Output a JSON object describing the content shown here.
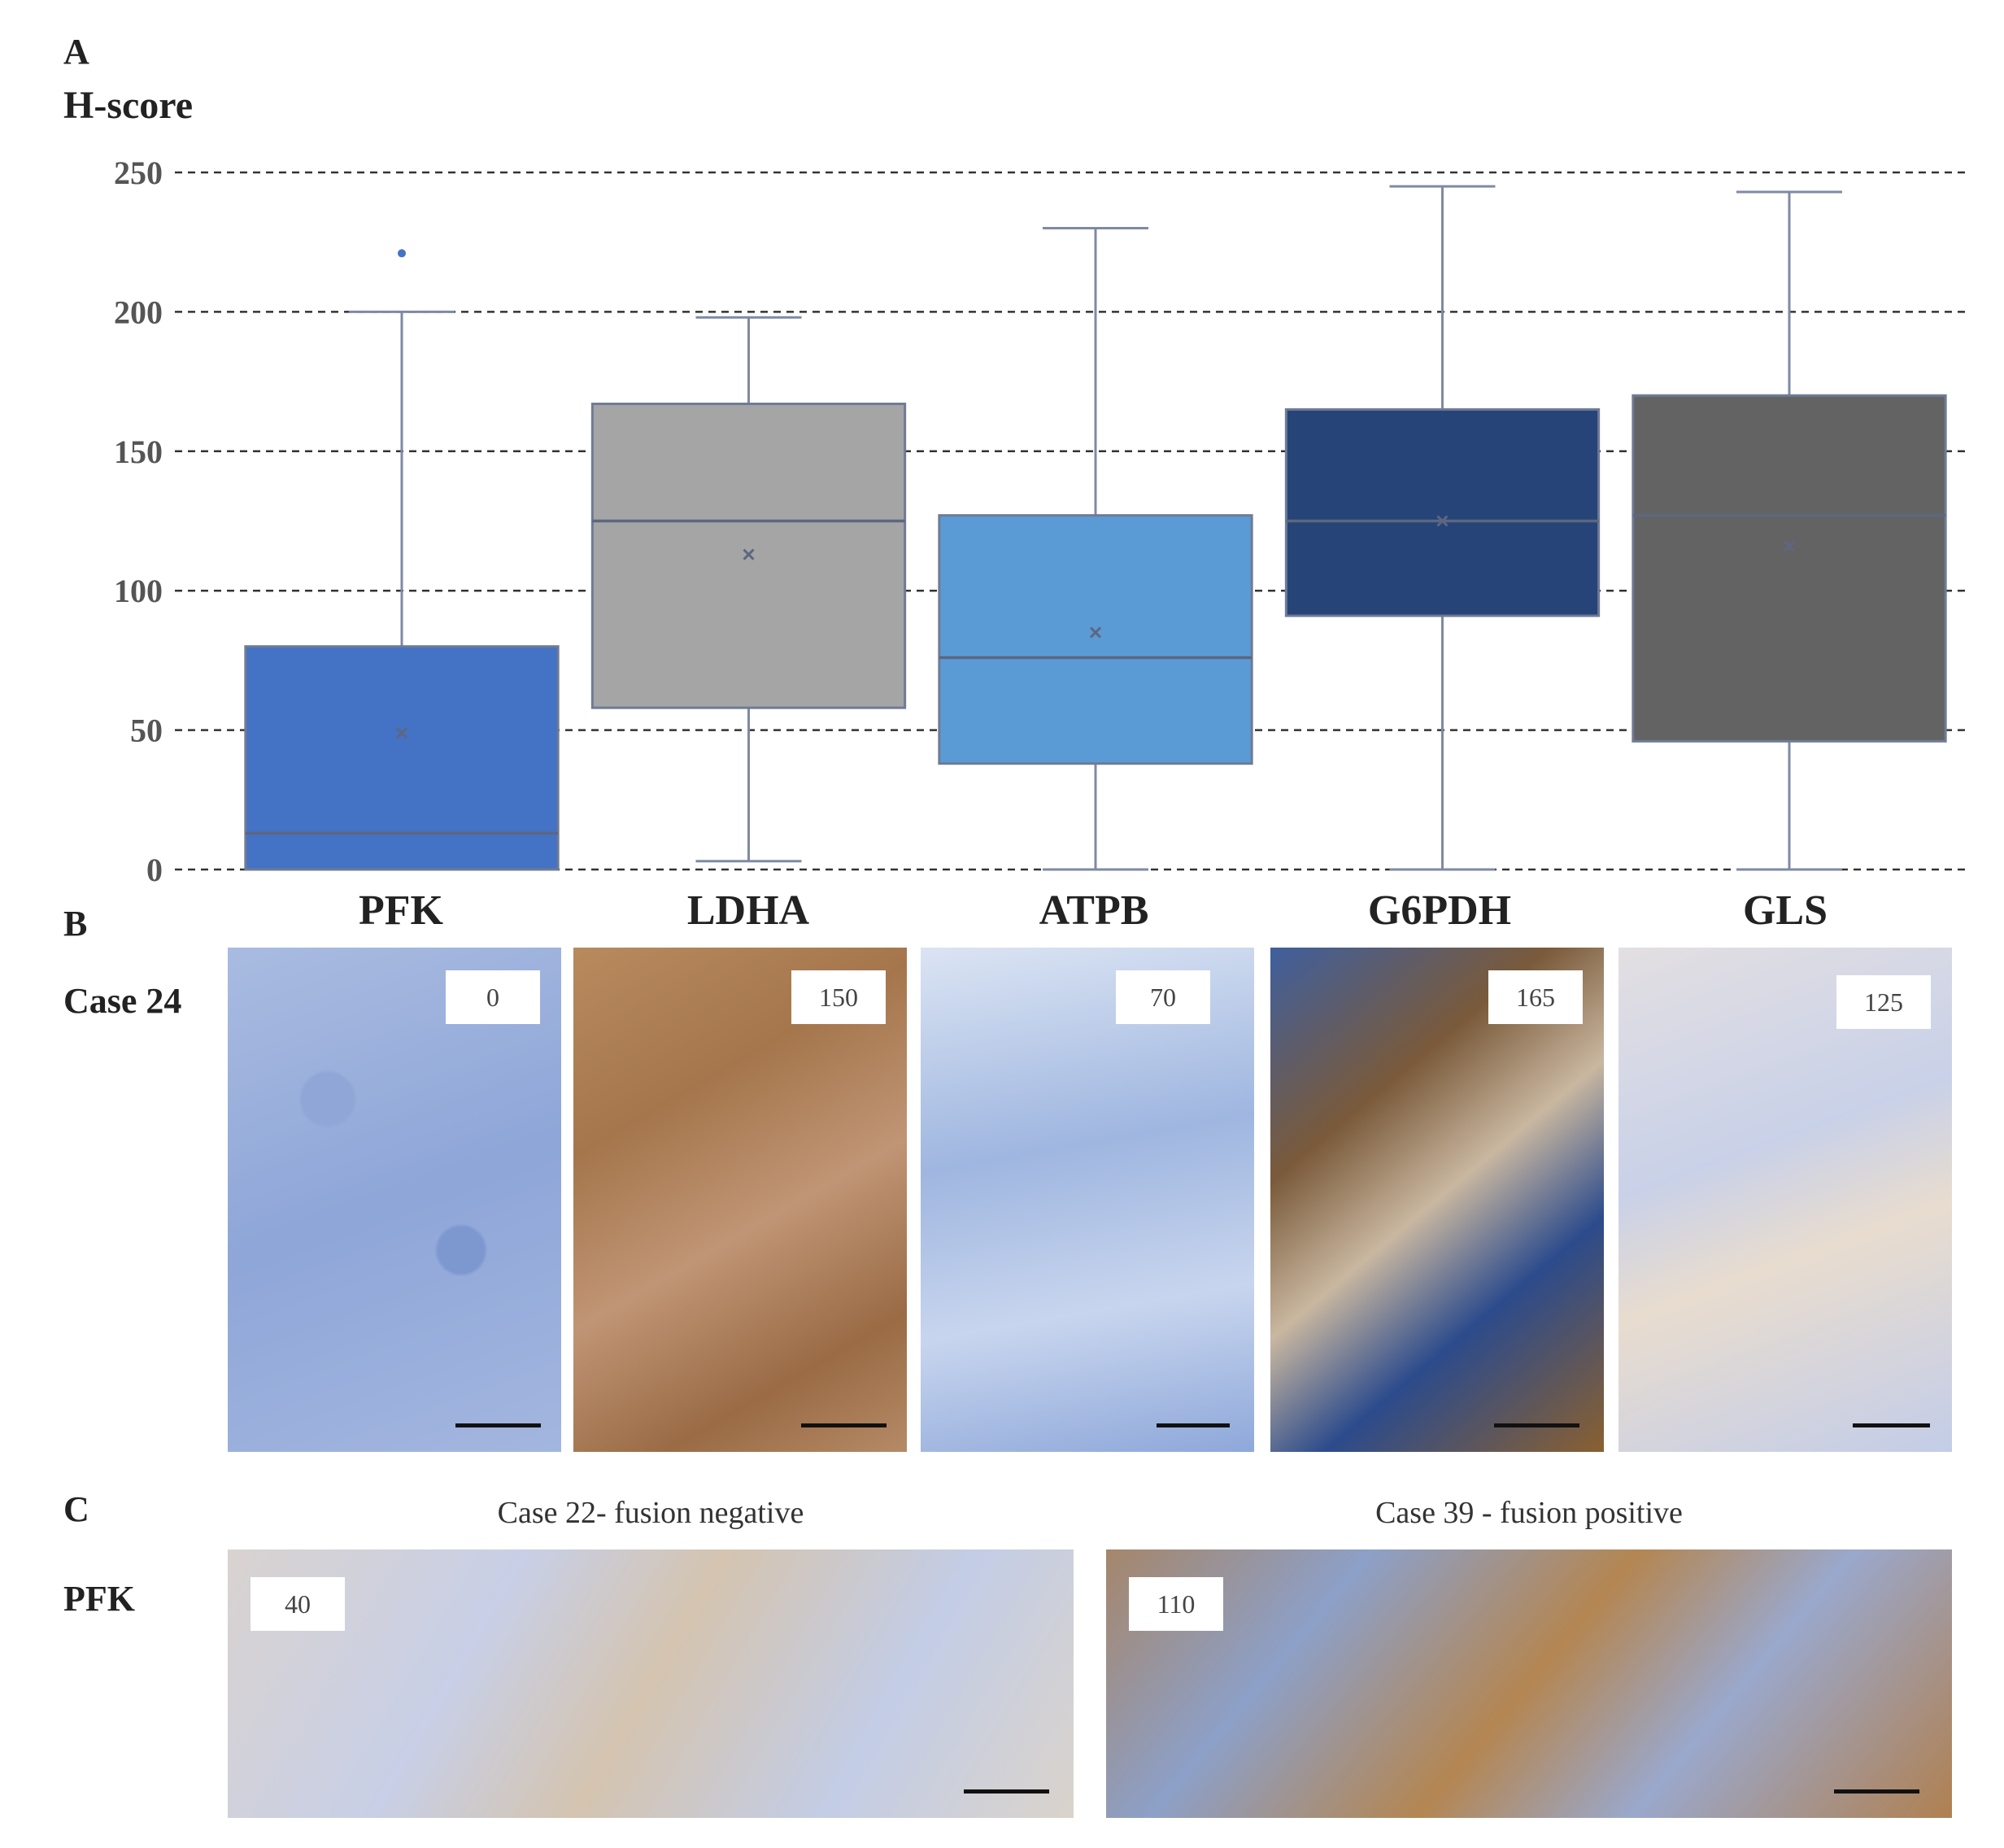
{
  "panels": {
    "a": "A",
    "b": "B",
    "c": "C"
  },
  "chart_data": {
    "type": "box",
    "ylabel": "H-score",
    "ylim": [
      0,
      250
    ],
    "yticks": [
      0,
      50,
      100,
      150,
      200,
      250
    ],
    "grid": true,
    "categories": [
      "PFK",
      "LDHA",
      "ATPB",
      "G6PDH",
      "GLS"
    ],
    "boxes": [
      {
        "name": "PFK",
        "min": 0,
        "q1": 0,
        "median": 13,
        "q3": 80,
        "max": 200,
        "mean": 49,
        "outliers": [
          221
        ],
        "color": "#4472c4"
      },
      {
        "name": "LDHA",
        "min": 3,
        "q1": 58,
        "median": 125,
        "q3": 167,
        "max": 198,
        "mean": 113,
        "outliers": [],
        "color": "#a5a5a5"
      },
      {
        "name": "ATPB",
        "min": 0,
        "q1": 38,
        "median": 76,
        "q3": 127,
        "max": 230,
        "mean": 85,
        "outliers": [],
        "color": "#5b9bd5"
      },
      {
        "name": "G6PDH",
        "min": 0,
        "q1": 91,
        "median": 125,
        "q3": 165,
        "max": 245,
        "mean": 125,
        "outliers": [],
        "color": "#264478"
      },
      {
        "name": "GLS",
        "min": 0,
        "q1": 46,
        "median": 127,
        "q3": 170,
        "max": 243,
        "mean": 116,
        "outliers": [],
        "color": "#636363"
      }
    ]
  },
  "panel_b": {
    "row_label": "Case 24",
    "images": [
      {
        "gene": "PFK",
        "score": "0",
        "stain": "blue"
      },
      {
        "gene": "LDHA",
        "score": "150",
        "stain": "brown"
      },
      {
        "gene": "ATPB",
        "score": "70",
        "stain": "light"
      },
      {
        "gene": "G6PDH",
        "score": "165",
        "stain": "dark"
      },
      {
        "gene": "GLS",
        "score": "125",
        "stain": "pale"
      }
    ]
  },
  "panel_c": {
    "row_label": "PFK",
    "images": [
      {
        "caption": "Case 22- fusion negative",
        "score": "40"
      },
      {
        "caption": "Case 39 - fusion positive",
        "score": "110"
      }
    ]
  }
}
